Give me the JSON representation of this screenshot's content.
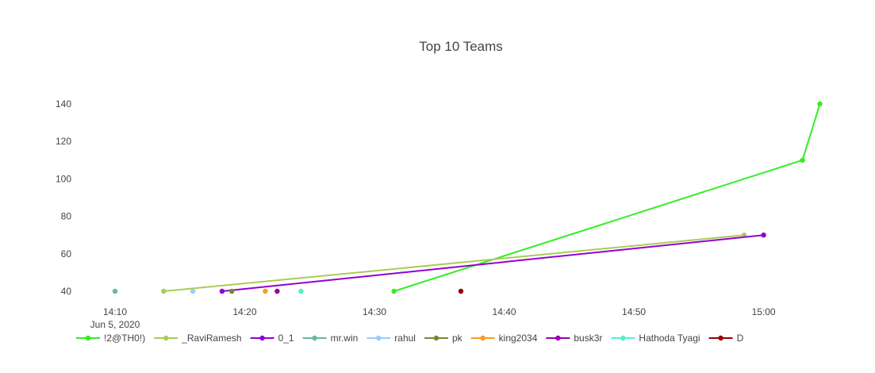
{
  "chart_data": {
    "type": "line",
    "title": "Top 10 Teams",
    "xlabel": "",
    "ylabel": "",
    "x_axis": {
      "type": "date",
      "range": [
        "2020-06-05 14:10",
        "2020-06-05 15:04"
      ],
      "ticks": [
        {
          "value": "2020-06-05 14:10",
          "label": "14:10",
          "sublabel": "Jun 5, 2020"
        },
        {
          "value": "2020-06-05 14:20",
          "label": "14:20",
          "sublabel": ""
        },
        {
          "value": "2020-06-05 14:30",
          "label": "14:30",
          "sublabel": ""
        },
        {
          "value": "2020-06-05 14:40",
          "label": "14:40",
          "sublabel": ""
        },
        {
          "value": "2020-06-05 14:50",
          "label": "14:50",
          "sublabel": ""
        },
        {
          "value": "2020-06-05 15:00",
          "label": "15:00",
          "sublabel": ""
        }
      ]
    },
    "y_axis": {
      "range": [
        40,
        140
      ],
      "ticks": [
        40,
        60,
        80,
        100,
        120,
        140
      ]
    },
    "grid": false,
    "legend": "bottom",
    "series": [
      {
        "name": "!2@TH0!)",
        "color": "#33ee22",
        "points": [
          {
            "x": "2020-06-05 14:31:30",
            "y": 40
          },
          {
            "x": "2020-06-05 15:03:00",
            "y": 110
          },
          {
            "x": "2020-06-05 15:04:20",
            "y": 140
          }
        ]
      },
      {
        "name": "_RaviRamesh",
        "color": "#aacc55",
        "points": [
          {
            "x": "2020-06-05 14:13:45",
            "y": 40
          },
          {
            "x": "2020-06-05 14:58:30",
            "y": 70
          }
        ]
      },
      {
        "name": "0_1",
        "color": "#9400d3",
        "points": [
          {
            "x": "2020-06-05 14:18:15",
            "y": 40
          },
          {
            "x": "2020-06-05 15:00:00",
            "y": 70
          }
        ]
      },
      {
        "name": "mr.win",
        "color": "#66bb99",
        "points": [
          {
            "x": "2020-06-05 14:10:00",
            "y": 40
          }
        ]
      },
      {
        "name": "rahul",
        "color": "#99ccff",
        "points": [
          {
            "x": "2020-06-05 14:16:00",
            "y": 40
          }
        ]
      },
      {
        "name": "pk",
        "color": "#778833",
        "points": [
          {
            "x": "2020-06-05 14:19:00",
            "y": 40
          }
        ]
      },
      {
        "name": "king2034",
        "color": "#ff9922",
        "points": [
          {
            "x": "2020-06-05 14:21:35",
            "y": 40
          }
        ]
      },
      {
        "name": "busk3r",
        "color": "#9900aa",
        "points": [
          {
            "x": "2020-06-05 14:22:30",
            "y": 40
          }
        ]
      },
      {
        "name": "Hathoda Tyagi",
        "color": "#55eecc",
        "points": [
          {
            "x": "2020-06-05 14:24:20",
            "y": 40
          }
        ]
      },
      {
        "name": "D",
        "color": "#990000",
        "points": [
          {
            "x": "2020-06-05 14:36:40",
            "y": 40
          }
        ]
      }
    ]
  }
}
